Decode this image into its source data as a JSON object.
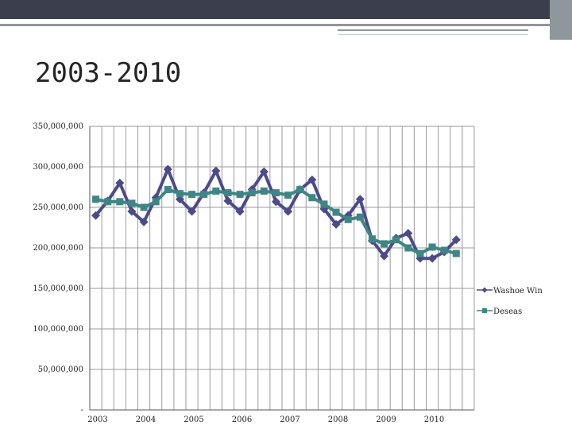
{
  "slide": {
    "title": "2003-2010"
  },
  "chart_data": {
    "type": "line",
    "title": "",
    "xlabel": "",
    "ylabel": "",
    "ylim": [
      0,
      350000000
    ],
    "y_ticks": [
      0,
      50000000,
      100000000,
      150000000,
      200000000,
      250000000,
      300000000,
      350000000
    ],
    "y_tick_labels": [
      "-",
      "50,000,000",
      "100,000,000",
      "150,000,000",
      "200,000,000",
      "250,000,000",
      "300,000,000",
      "350,000,000"
    ],
    "x_tick_labels": [
      "2003",
      "2004",
      "2005",
      "2006",
      "2007",
      "2008",
      "2009",
      "2010"
    ],
    "points_per_year": 4,
    "grid": true,
    "legend_position": "right",
    "series": [
      {
        "name": "Washoe Win",
        "color": "#4b4b8a",
        "marker": "diamond",
        "values": [
          240000000,
          258000000,
          280000000,
          245000000,
          232000000,
          262000000,
          297000000,
          260000000,
          245000000,
          268000000,
          295000000,
          258000000,
          245000000,
          272000000,
          294000000,
          257000000,
          245000000,
          272000000,
          284000000,
          248000000,
          229000000,
          240000000,
          260000000,
          209000000,
          190000000,
          212000000,
          218000000,
          187000000,
          187000000,
          195000000,
          210000000
        ]
      },
      {
        "name": "Deseas",
        "color": "#3f8585",
        "marker": "square",
        "values": [
          260000000,
          257000000,
          257000000,
          255000000,
          250000000,
          257000000,
          272000000,
          267000000,
          266000000,
          266000000,
          270000000,
          268000000,
          266000000,
          268000000,
          270000000,
          268000000,
          265000000,
          272000000,
          262000000,
          254000000,
          244000000,
          235000000,
          238000000,
          211000000,
          205000000,
          210000000,
          200000000,
          193000000,
          201000000,
          197000000,
          193000000
        ]
      }
    ]
  }
}
